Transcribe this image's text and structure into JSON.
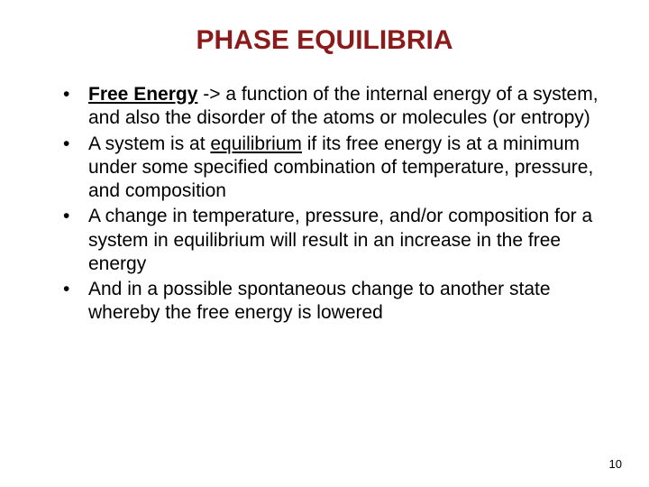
{
  "title": "PHASE EQUILIBRIA",
  "bullets": {
    "b1_prefix": "Free Energy",
    "b1_arrow": " -> ",
    "b1_rest": "a function of the internal energy of a system, and also the disorder of the atoms or molecules (or entropy)",
    "b2_pre": "A system is at ",
    "b2_underline": "equilibrium",
    "b2_post": " if its free energy is at a minimum under some specified combination of temperature, pressure, and composition",
    "b3": "A change in temperature, pressure, and/or composition for a system in equilibrium will result in an increase in the free energy",
    "b4": "And in a possible spontaneous change to another state whereby the free energy is lowered"
  },
  "pageNumber": "10",
  "colors": {
    "title": "#8b1a1a",
    "text": "#000000",
    "background": "#ffffff"
  },
  "typography": {
    "title_fontsize": 30,
    "body_fontsize": 21,
    "pagenum_fontsize": 13,
    "font_family": "Arial"
  }
}
